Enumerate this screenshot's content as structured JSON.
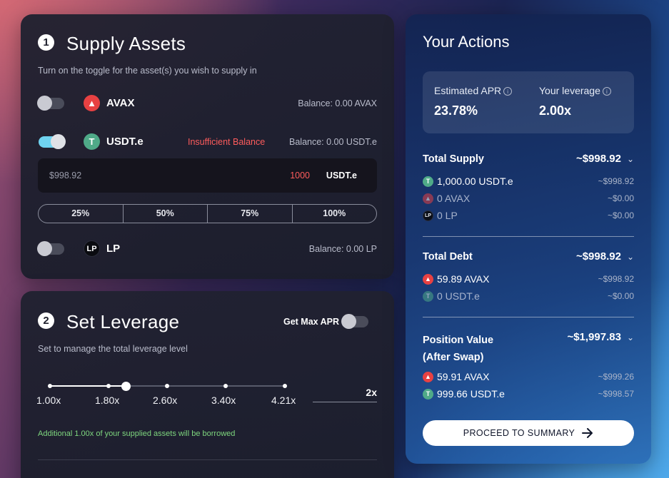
{
  "supply": {
    "step": "1",
    "title": "Supply Assets",
    "subtitle": "Turn on the toggle for the asset(s) you wish to supply in",
    "assets": [
      {
        "name": "AVAX",
        "balance": "Balance: 0.00 AVAX",
        "enabled": false,
        "icon": "avax-icon"
      },
      {
        "name": "USDT.e",
        "balance": "Balance: 0.00 USDT.e",
        "enabled": true,
        "icon": "usdt-icon",
        "warning": "Insufficient Balance"
      },
      {
        "name": "LP",
        "balance": "Balance: 0.00 LP",
        "enabled": false,
        "icon": "lp-icon"
      }
    ],
    "input": {
      "usd": "$998.92",
      "amount": "1000",
      "unit": "USDT.e"
    },
    "percent_buttons": [
      "25%",
      "50%",
      "75%",
      "100%"
    ]
  },
  "leverage": {
    "step": "2",
    "title": "Set Leverage",
    "subtitle": "Set to manage the total leverage level",
    "max_apr_label": "Get Max APR",
    "max_apr_enabled": false,
    "ticks": [
      "1.00x",
      "1.80x",
      "2.60x",
      "3.40x",
      "4.21x"
    ],
    "value": "2x",
    "slider_fraction": 0.32,
    "note": "Additional 1.00x of your supplied assets will be borrowed"
  },
  "actions": {
    "title": "Your Actions",
    "apr_label": "Estimated APR",
    "apr_value": "23.78%",
    "leverage_label": "Your leverage",
    "leverage_value": "2.00x",
    "total_supply": {
      "label": "Total Supply",
      "total": "~$998.92",
      "items": [
        {
          "text": "1,000.00 USDT.e",
          "usd": "~$998.92",
          "icon": "usdt-icon",
          "dim": false
        },
        {
          "text": "0 AVAX",
          "usd": "~$0.00",
          "icon": "avax-icon",
          "dim": true
        },
        {
          "text": "0 LP",
          "usd": "~$0.00",
          "icon": "lp-icon",
          "dim": true
        }
      ]
    },
    "total_debt": {
      "label": "Total Debt",
      "total": "~$998.92",
      "items": [
        {
          "text": "59.89 AVAX",
          "usd": "~$998.92",
          "icon": "avax-icon",
          "dim": false
        },
        {
          "text": "0 USDT.e",
          "usd": "~$0.00",
          "icon": "usdt-icon",
          "dim": true
        }
      ]
    },
    "position_value": {
      "label_line1": "Position Value",
      "label_line2": "(After Swap)",
      "total": "~$1,997.83",
      "items": [
        {
          "text": "59.91 AVAX",
          "usd": "~$999.26",
          "icon": "avax-icon",
          "dim": false
        },
        {
          "text": "999.66 USDT.e",
          "usd": "~$998.57",
          "icon": "usdt-icon",
          "dim": false
        }
      ]
    },
    "proceed_label": "PROCEED TO SUMMARY"
  },
  "colors": {
    "avax": "#e84142",
    "usdt": "#4faa88",
    "warning": "#ff5c5c",
    "note": "#7ed67e",
    "toggle_on": "#6fd3f0"
  }
}
